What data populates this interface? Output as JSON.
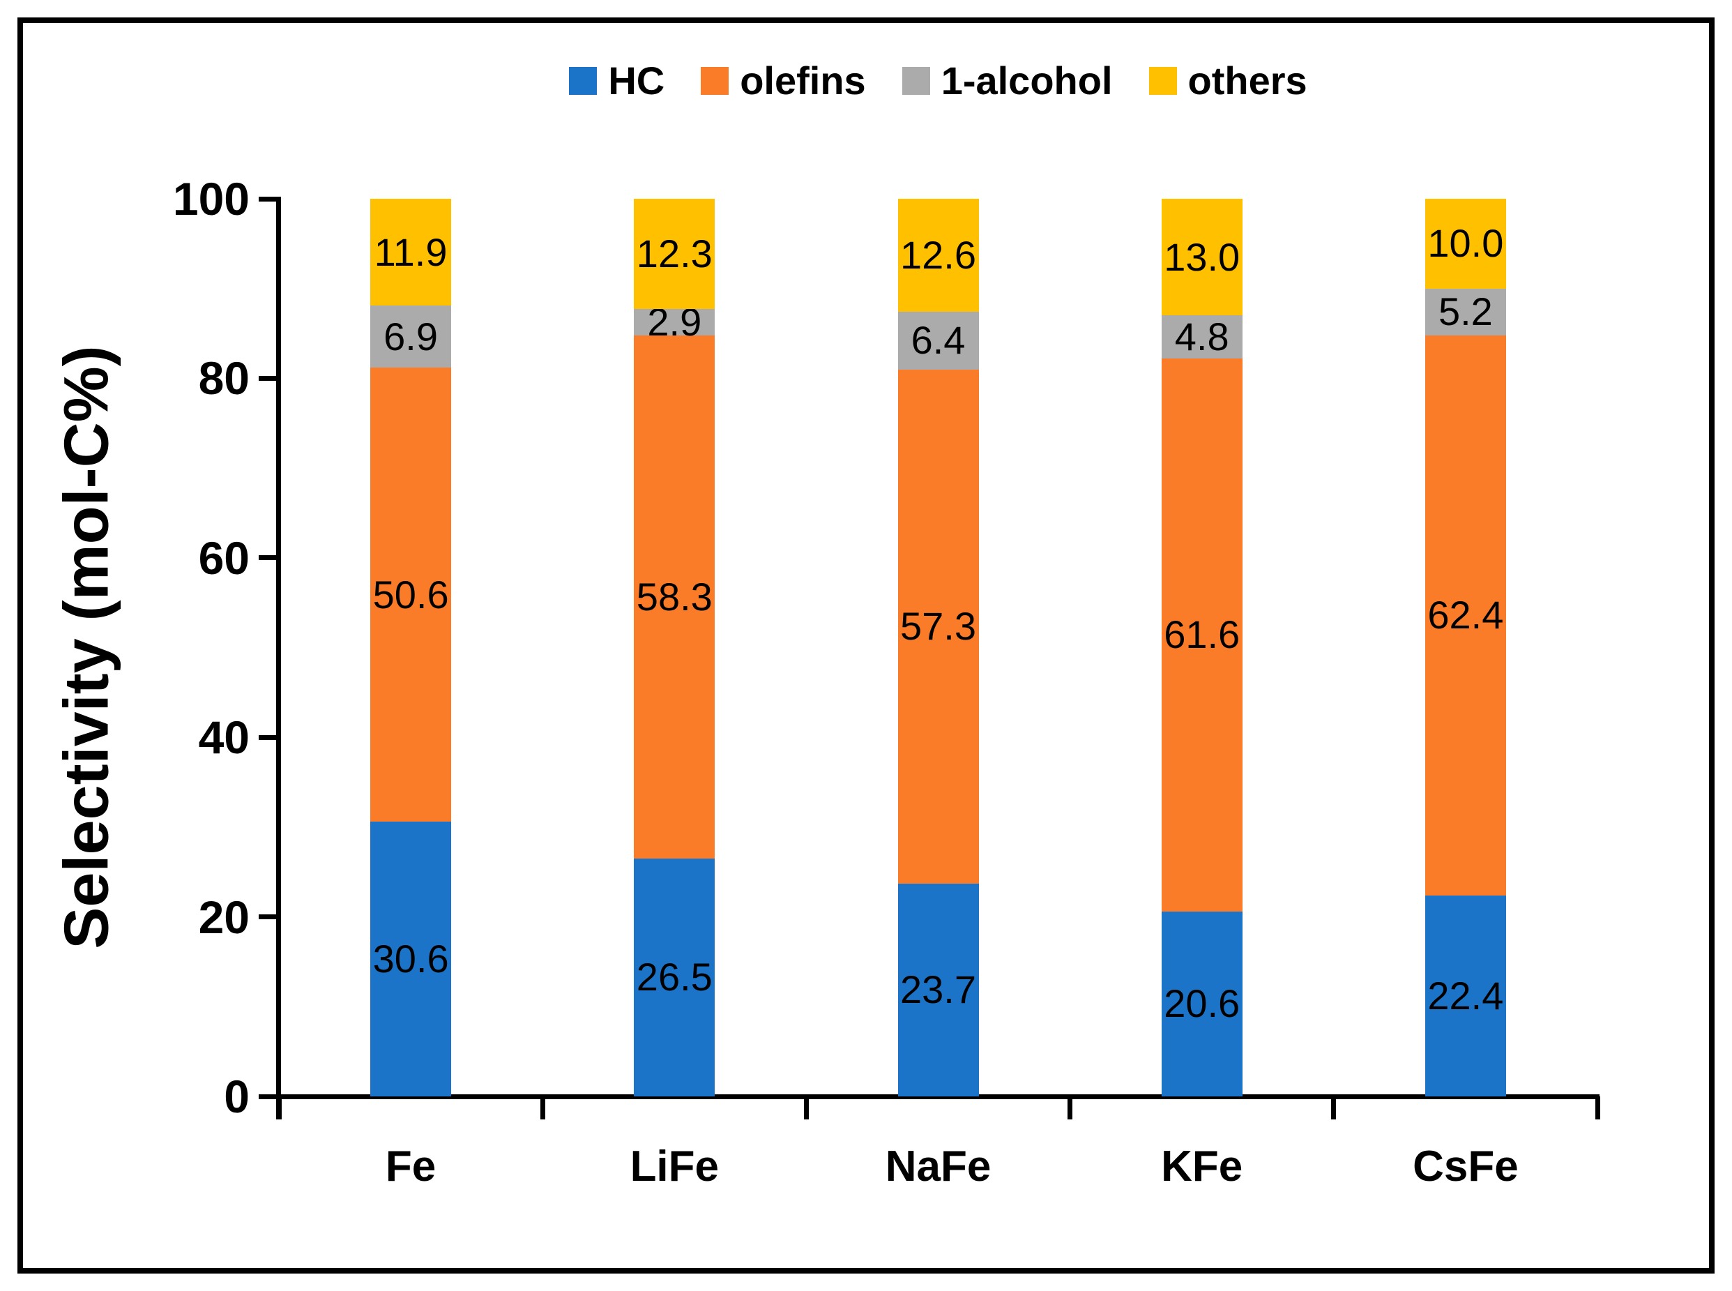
{
  "chart_data": {
    "type": "bar",
    "stacked": true,
    "title": "",
    "xlabel": "",
    "ylabel": "Selectivity (mol-C%)",
    "ylim": [
      0,
      100
    ],
    "yticks": [
      0,
      20,
      40,
      60,
      80,
      100
    ],
    "grid": false,
    "legend_position": "top",
    "data_labels": true,
    "categories": [
      "Fe",
      "LiFe",
      "NaFe",
      "KFe",
      "CsFe"
    ],
    "series": [
      {
        "name": "HC",
        "color": "#1c74c8",
        "values": [
          30.6,
          26.5,
          23.7,
          20.6,
          22.4
        ]
      },
      {
        "name": "olefins",
        "color": "#fb7c28",
        "values": [
          50.6,
          58.3,
          57.3,
          61.6,
          62.4
        ]
      },
      {
        "name": "1-alcohol",
        "color": "#ababab",
        "values": [
          6.9,
          2.9,
          6.4,
          4.8,
          5.2
        ]
      },
      {
        "name": "others",
        "color": "#ffc000",
        "values": [
          11.9,
          12.3,
          12.6,
          13.0,
          10.0
        ]
      }
    ],
    "colors": {
      "axis": "#000000",
      "label_text": "#000000",
      "background": "#ffffff"
    }
  }
}
